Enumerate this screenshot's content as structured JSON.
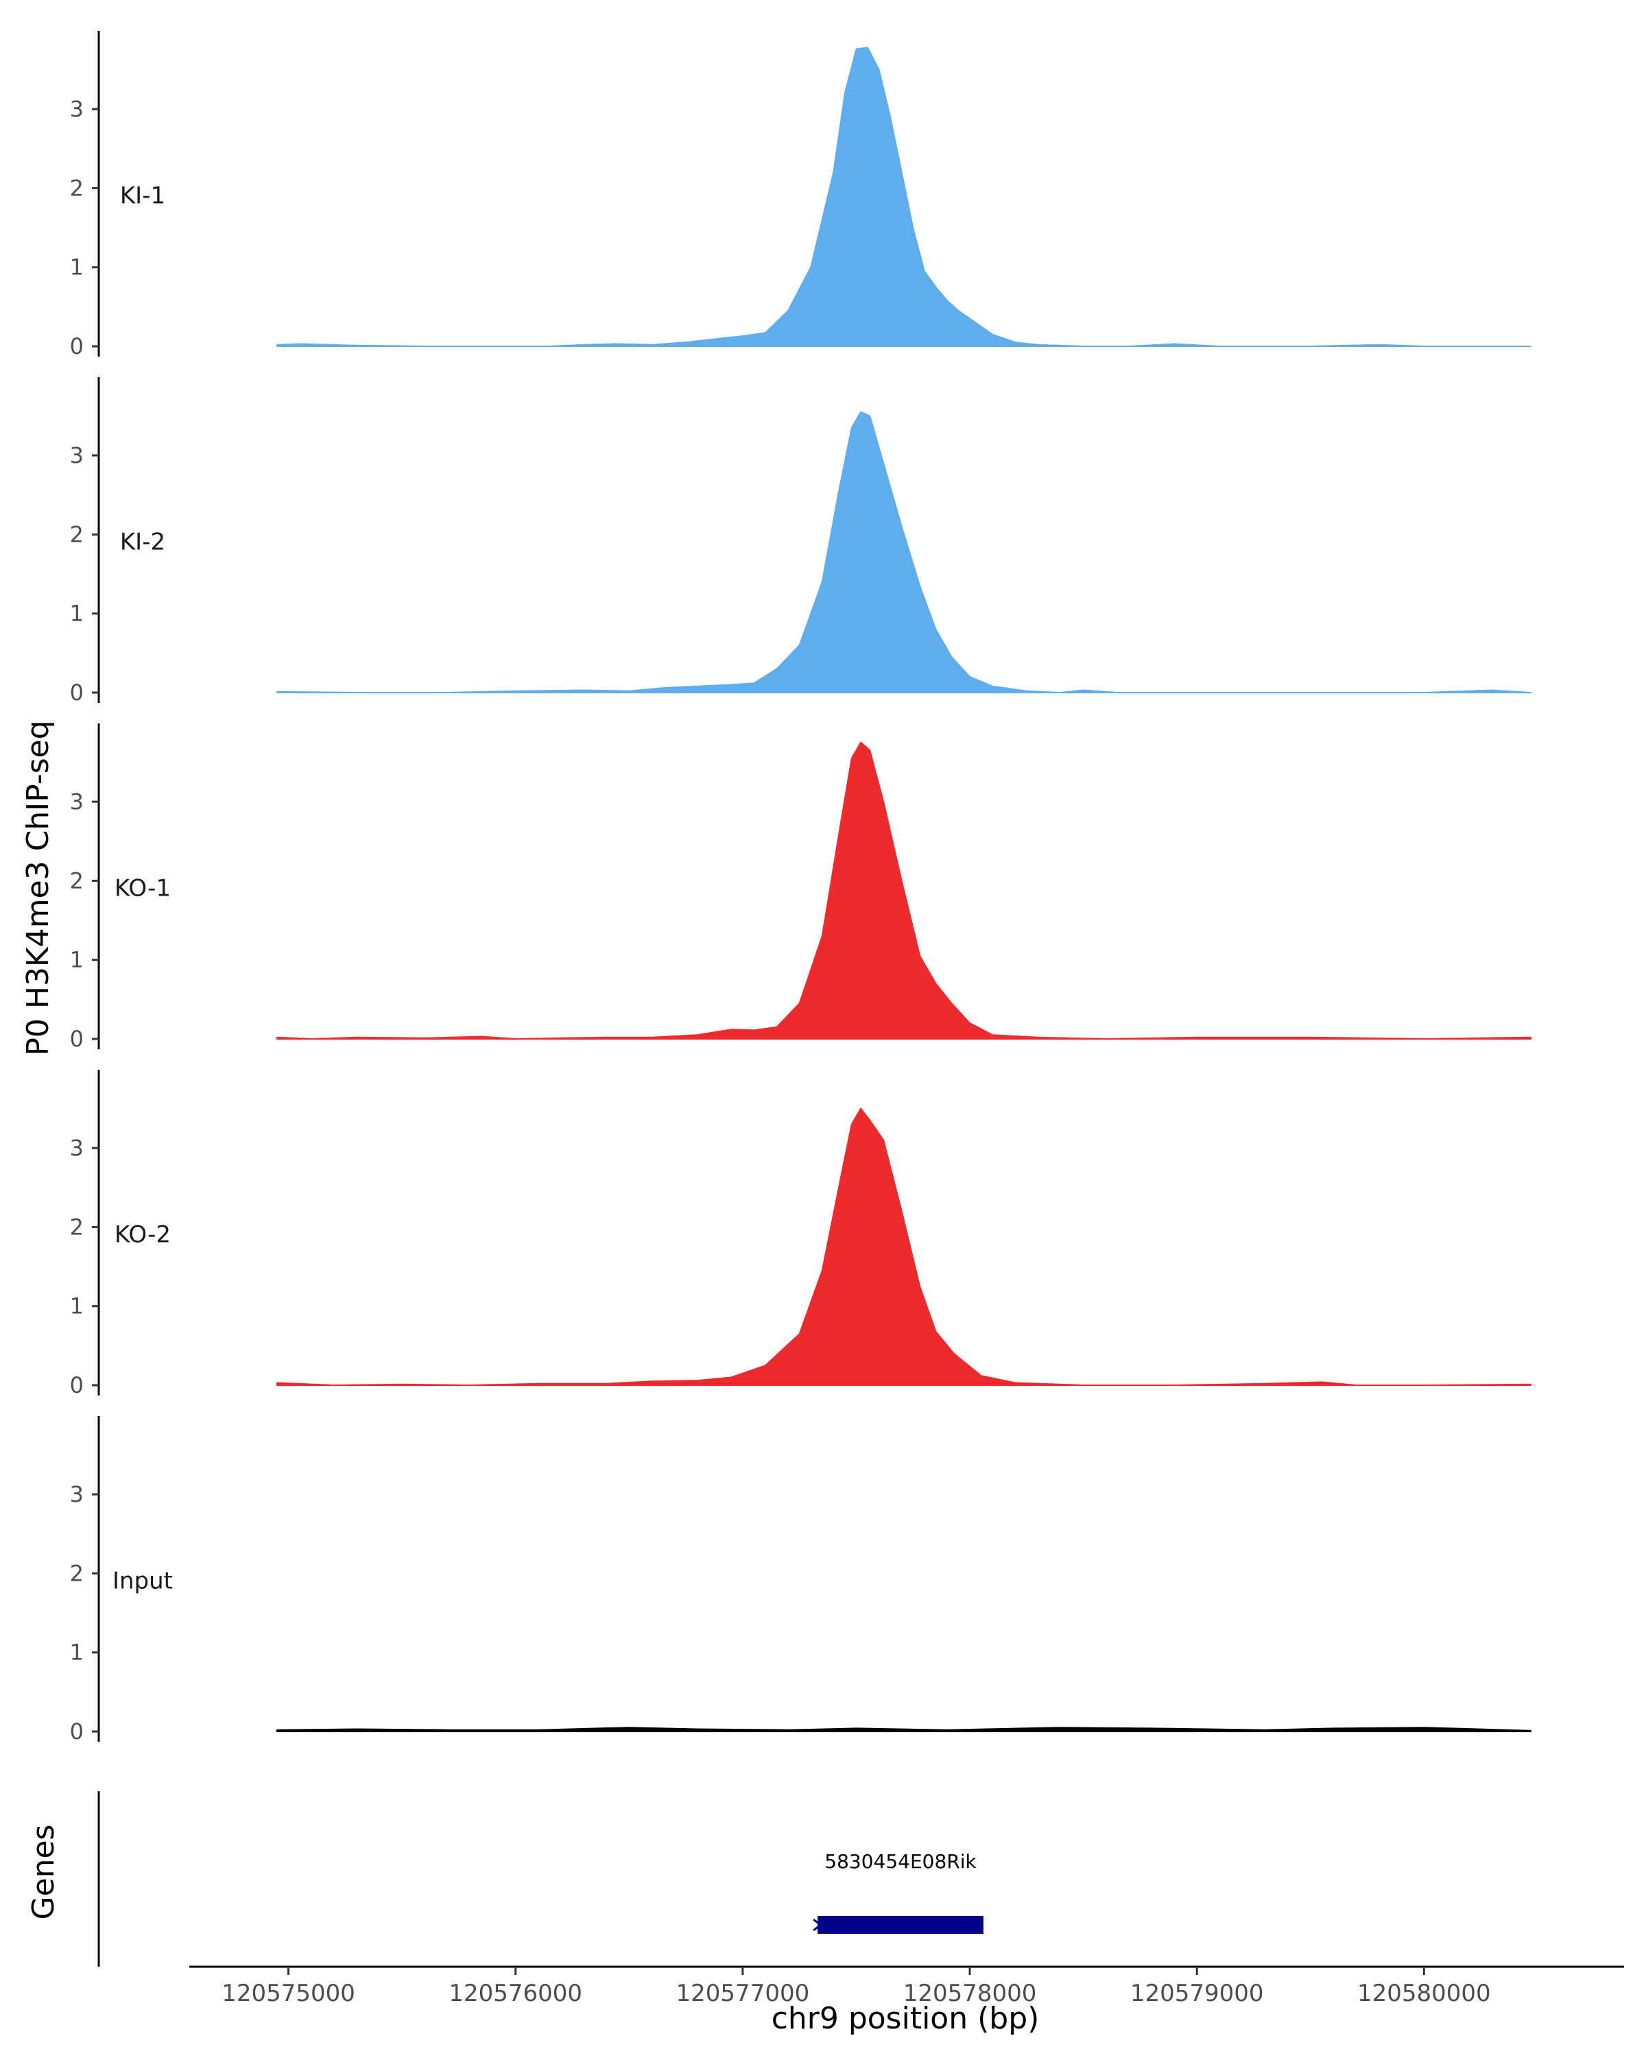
{
  "chart_data": {
    "type": "area",
    "ylabel": "P0 H3K4me3 ChIP-seq",
    "xlabel": "chr9 position (bp)",
    "x_range": [
      120574950,
      120580470
    ],
    "ylim": [
      0,
      3.95
    ],
    "y_ticks": [
      0,
      1,
      2,
      3
    ],
    "x_ticks": [
      120575000,
      120576000,
      120577000,
      120578000,
      120579000,
      120580000
    ],
    "x_tick_labels": [
      "120575000",
      "120576000",
      "120577000",
      "120578000",
      "120579000",
      "120580000"
    ],
    "series": [
      {
        "name": "KI-1",
        "color": "#5fadec",
        "x": [
          120574950,
          120575050,
          120575300,
          120575600,
          120575900,
          120576150,
          120576300,
          120576450,
          120576600,
          120576750,
          120576900,
          120577000,
          120577100,
          120577200,
          120577300,
          120577400,
          120577450,
          120577500,
          120577550,
          120577600,
          120577650,
          120577700,
          120577750,
          120577800,
          120577850,
          120577900,
          120577950,
          120578000,
          120578100,
          120578200,
          120578300,
          120578500,
          120578700,
          120578900,
          120579100,
          120579500,
          120579800,
          120580000,
          120580470
        ],
        "values": [
          0.02,
          0.03,
          0.01,
          0.0,
          0.0,
          0.0,
          0.02,
          0.03,
          0.02,
          0.05,
          0.1,
          0.13,
          0.17,
          0.45,
          1.0,
          2.2,
          3.2,
          3.76,
          3.78,
          3.5,
          2.9,
          2.2,
          1.5,
          0.95,
          0.75,
          0.58,
          0.45,
          0.35,
          0.15,
          0.05,
          0.02,
          0.0,
          0.0,
          0.03,
          0.0,
          0.0,
          0.02,
          0.0,
          0.0
        ]
      },
      {
        "name": "KI-2",
        "color": "#5fadec",
        "x": [
          120574950,
          120575300,
          120575700,
          120576000,
          120576300,
          120576500,
          120576650,
          120576800,
          120576950,
          120577050,
          120577150,
          120577250,
          120577350,
          120577420,
          120577480,
          120577520,
          120577560,
          120577620,
          120577700,
          120577780,
          120577850,
          120577920,
          120578000,
          120578100,
          120578250,
          120578400,
          120578500,
          120578650,
          120579000,
          120579500,
          120580000,
          120580300,
          120580470
        ],
        "values": [
          0.01,
          0.0,
          0.0,
          0.02,
          0.03,
          0.02,
          0.06,
          0.08,
          0.1,
          0.12,
          0.3,
          0.6,
          1.4,
          2.5,
          3.35,
          3.55,
          3.5,
          2.9,
          2.1,
          1.35,
          0.8,
          0.45,
          0.2,
          0.08,
          0.02,
          0.0,
          0.03,
          0.0,
          0.0,
          0.0,
          0.0,
          0.03,
          0.0
        ]
      },
      {
        "name": "KO-1",
        "color": "#ee2b2c",
        "x": [
          120574950,
          120575100,
          120575300,
          120575600,
          120575850,
          120576000,
          120576200,
          120576400,
          120576600,
          120576800,
          120576950,
          120577050,
          120577150,
          120577250,
          120577350,
          120577430,
          120577480,
          120577520,
          120577560,
          120577620,
          120577700,
          120577780,
          120577850,
          120577920,
          120578000,
          120578100,
          120578300,
          120578600,
          120579000,
          120579500,
          120580000,
          120580470
        ],
        "values": [
          0.02,
          0.0,
          0.02,
          0.01,
          0.03,
          0.0,
          0.01,
          0.02,
          0.02,
          0.05,
          0.12,
          0.11,
          0.15,
          0.45,
          1.3,
          2.7,
          3.55,
          3.75,
          3.65,
          3.0,
          2.0,
          1.05,
          0.7,
          0.45,
          0.2,
          0.05,
          0.02,
          0.0,
          0.02,
          0.02,
          0.0,
          0.02
        ]
      },
      {
        "name": "KO-2",
        "color": "#ee2b2c",
        "x": [
          120574950,
          120575200,
          120575500,
          120575800,
          120576100,
          120576400,
          120576600,
          120576800,
          120576950,
          120577100,
          120577250,
          120577350,
          120577430,
          120577480,
          120577520,
          120577560,
          120577620,
          120577700,
          120577780,
          120577850,
          120577930,
          120578050,
          120578200,
          120578500,
          120578900,
          120579300,
          120579550,
          120579700,
          120580000,
          120580470
        ],
        "values": [
          0.03,
          0.0,
          0.01,
          0.0,
          0.02,
          0.02,
          0.05,
          0.06,
          0.1,
          0.25,
          0.65,
          1.45,
          2.6,
          3.3,
          3.5,
          3.35,
          3.1,
          2.2,
          1.25,
          0.68,
          0.4,
          0.12,
          0.03,
          0.0,
          0.0,
          0.02,
          0.04,
          0.0,
          0.0,
          0.01
        ]
      },
      {
        "name": "Input",
        "color": "#000000",
        "x": [
          120574950,
          120575300,
          120575700,
          120576100,
          120576500,
          120576800,
          120577200,
          120577500,
          120577900,
          120578400,
          120578800,
          120579300,
          120579600,
          120580000,
          120580470
        ],
        "values": [
          0.02,
          0.03,
          0.02,
          0.02,
          0.05,
          0.03,
          0.02,
          0.04,
          0.02,
          0.05,
          0.04,
          0.02,
          0.04,
          0.05,
          0.01
        ]
      }
    ],
    "genes_track": {
      "label": "Genes",
      "genes": [
        {
          "name": "5830454E08Rik",
          "start": 120577330,
          "end": 120578060,
          "color": "#00008b"
        }
      ]
    }
  }
}
